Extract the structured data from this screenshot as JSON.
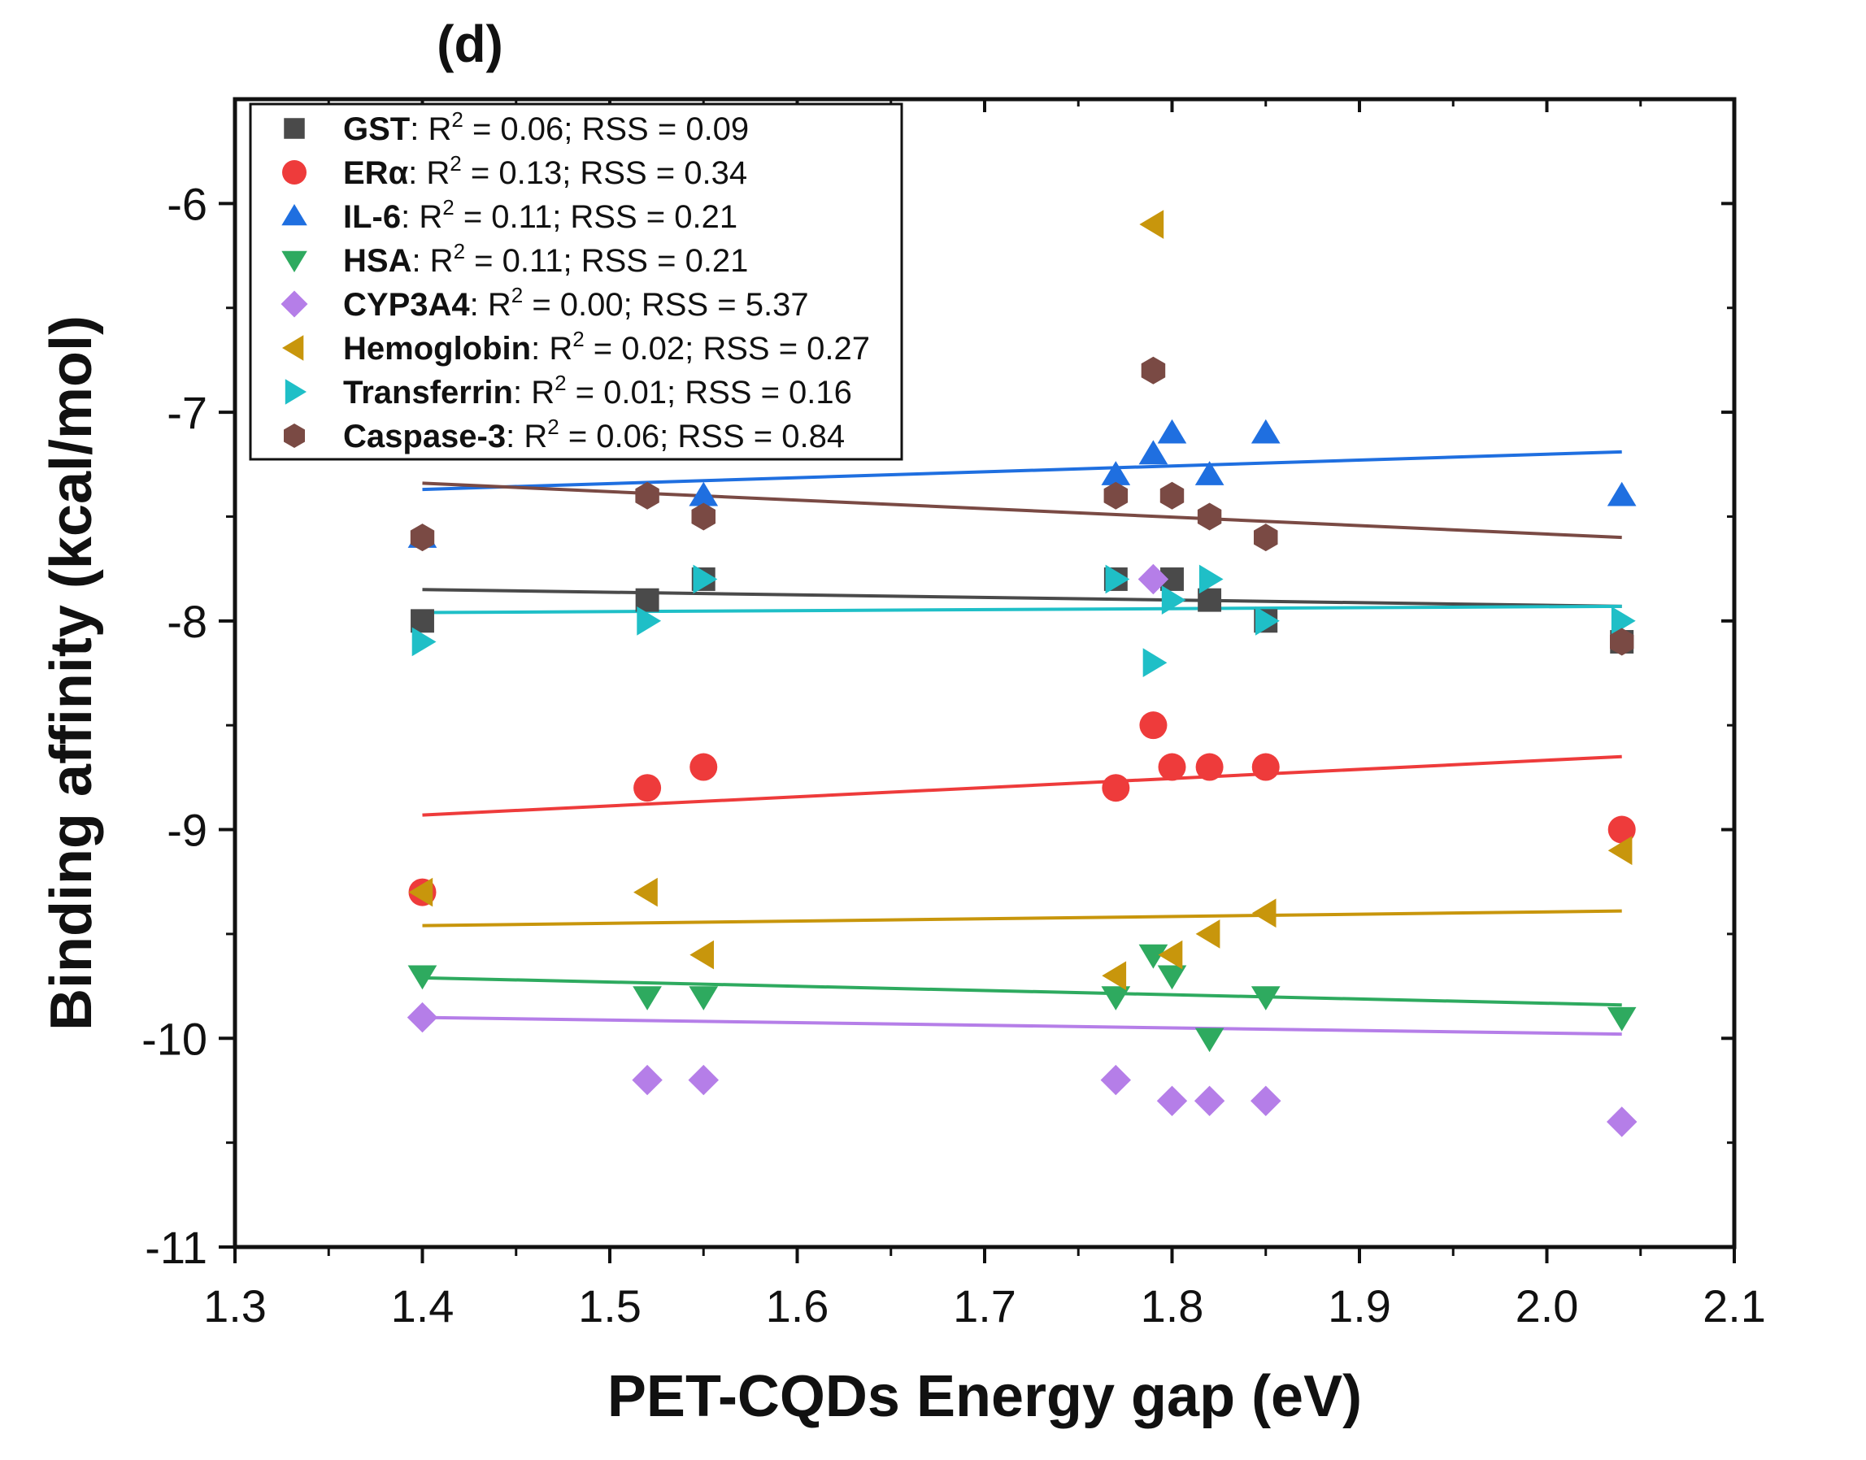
{
  "chart_data": {
    "type": "scatter",
    "panel_label": "(d)",
    "xlabel": "PET-CQDs Energy gap (eV)",
    "ylabel": "Binding affinity (kcal/mol)",
    "xlim": [
      1.3,
      2.1
    ],
    "ylim": [
      -11,
      -5.5
    ],
    "x_ticks": [
      1.3,
      1.4,
      1.5,
      1.6,
      1.7,
      1.8,
      1.9,
      2.0,
      2.1
    ],
    "x_tick_labels": [
      "1.3",
      "1.4",
      "1.5",
      "1.6",
      "1.7",
      "1.8",
      "1.9",
      "2.0",
      "2.1"
    ],
    "y_ticks": [
      -11,
      -10,
      -9,
      -8,
      -7,
      -6
    ],
    "y_tick_labels": [
      "-11",
      "-10",
      "-9",
      "-8",
      "-7",
      "-6"
    ],
    "legend_position": "top-left",
    "series": [
      {
        "name": "GST",
        "r2": "0.06",
        "rss": "0.09",
        "color": "#4a4a4a",
        "marker": "square",
        "points": [
          [
            1.4,
            -8.0
          ],
          [
            1.52,
            -7.9
          ],
          [
            1.55,
            -7.8
          ],
          [
            1.77,
            -7.8
          ],
          [
            1.8,
            -7.8
          ],
          [
            1.82,
            -7.9
          ],
          [
            1.85,
            -8.0
          ],
          [
            2.04,
            -8.1
          ]
        ],
        "fit": [
          [
            1.4,
            -7.85
          ],
          [
            2.04,
            -7.93
          ]
        ]
      },
      {
        "name": "ERα",
        "r2": "0.13",
        "rss": "0.34",
        "color": "#ee3b3b",
        "marker": "circle",
        "points": [
          [
            1.4,
            -9.3
          ],
          [
            1.52,
            -8.8
          ],
          [
            1.55,
            -8.7
          ],
          [
            1.77,
            -8.8
          ],
          [
            1.79,
            -8.5
          ],
          [
            1.8,
            -8.7
          ],
          [
            1.82,
            -8.7
          ],
          [
            1.85,
            -8.7
          ],
          [
            2.04,
            -9.0
          ]
        ],
        "fit": [
          [
            1.4,
            -8.93
          ],
          [
            2.04,
            -8.65
          ]
        ]
      },
      {
        "name": "IL-6",
        "r2": "0.11",
        "rss": "0.21",
        "color": "#1f6fe0",
        "marker": "triangle-up",
        "points": [
          [
            1.4,
            -7.6
          ],
          [
            1.55,
            -7.4
          ],
          [
            1.77,
            -7.3
          ],
          [
            1.79,
            -7.2
          ],
          [
            1.8,
            -7.1
          ],
          [
            1.82,
            -7.3
          ],
          [
            1.85,
            -7.1
          ],
          [
            2.04,
            -7.4
          ]
        ],
        "fit": [
          [
            1.4,
            -7.37
          ],
          [
            2.04,
            -7.19
          ]
        ]
      },
      {
        "name": "HSA",
        "r2": "0.11",
        "rss": "0.21",
        "color": "#2eaa5f",
        "marker": "triangle-down",
        "points": [
          [
            1.4,
            -9.7
          ],
          [
            1.52,
            -9.8
          ],
          [
            1.55,
            -9.8
          ],
          [
            1.77,
            -9.8
          ],
          [
            1.79,
            -9.6
          ],
          [
            1.8,
            -9.7
          ],
          [
            1.82,
            -10.0
          ],
          [
            1.85,
            -9.8
          ],
          [
            2.04,
            -9.9
          ]
        ],
        "fit": [
          [
            1.4,
            -9.71
          ],
          [
            2.04,
            -9.84
          ]
        ]
      },
      {
        "name": "CYP3A4",
        "r2": "0.00",
        "rss": "5.37",
        "color": "#b57ee8",
        "marker": "diamond",
        "points": [
          [
            1.4,
            -9.9
          ],
          [
            1.52,
            -10.2
          ],
          [
            1.55,
            -10.2
          ],
          [
            1.77,
            -10.2
          ],
          [
            1.79,
            -7.8
          ],
          [
            1.8,
            -10.3
          ],
          [
            1.82,
            -10.3
          ],
          [
            1.85,
            -10.3
          ],
          [
            2.04,
            -10.4
          ]
        ],
        "fit": [
          [
            1.4,
            -9.9
          ],
          [
            2.04,
            -9.98
          ]
        ]
      },
      {
        "name": "Hemoglobin",
        "r2": "0.02",
        "rss": "0.27",
        "color": "#c8960c",
        "marker": "triangle-left",
        "points": [
          [
            1.4,
            -9.3
          ],
          [
            1.52,
            -9.3
          ],
          [
            1.55,
            -9.6
          ],
          [
            1.77,
            -9.7
          ],
          [
            1.79,
            -6.1
          ],
          [
            1.8,
            -9.6
          ],
          [
            1.82,
            -9.5
          ],
          [
            1.85,
            -9.4
          ],
          [
            2.04,
            -9.1
          ]
        ],
        "fit": [
          [
            1.4,
            -9.46
          ],
          [
            2.04,
            -9.39
          ]
        ]
      },
      {
        "name": "Transferrin",
        "r2": "0.01",
        "rss": "0.16",
        "color": "#1fbfc7",
        "marker": "triangle-right",
        "points": [
          [
            1.4,
            -8.1
          ],
          [
            1.52,
            -8.0
          ],
          [
            1.55,
            -7.8
          ],
          [
            1.77,
            -7.8
          ],
          [
            1.79,
            -8.2
          ],
          [
            1.8,
            -7.9
          ],
          [
            1.82,
            -7.8
          ],
          [
            1.85,
            -8.0
          ],
          [
            2.04,
            -8.0
          ]
        ],
        "fit": [
          [
            1.4,
            -7.96
          ],
          [
            2.04,
            -7.93
          ]
        ]
      },
      {
        "name": "Caspase-3",
        "r2": "0.06",
        "rss": "0.84",
        "color": "#7a4a44",
        "marker": "hexagon",
        "points": [
          [
            1.4,
            -7.6
          ],
          [
            1.52,
            -7.4
          ],
          [
            1.55,
            -7.5
          ],
          [
            1.77,
            -7.4
          ],
          [
            1.79,
            -6.8
          ],
          [
            1.8,
            -7.4
          ],
          [
            1.82,
            -7.5
          ],
          [
            1.85,
            -7.6
          ],
          [
            2.04,
            -8.1
          ]
        ],
        "fit": [
          [
            1.4,
            -7.34
          ],
          [
            2.04,
            -7.6
          ]
        ]
      }
    ]
  }
}
